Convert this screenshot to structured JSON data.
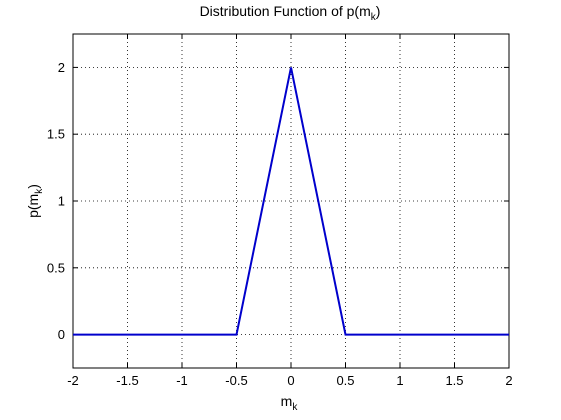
{
  "chart_data": {
    "type": "line",
    "title": {
      "main": "Distribution Function of p(m",
      "sub": "k",
      "close": ")"
    },
    "xlabel": {
      "main": "m",
      "sub": "k"
    },
    "ylabel": {
      "main": "p(m",
      "sub": "k",
      "close": ")"
    },
    "xlim": [
      -2,
      2
    ],
    "ylim": [
      -0.25,
      2.25
    ],
    "xticks": [
      -2,
      -1.5,
      -1,
      -0.5,
      0,
      0.5,
      1,
      1.5,
      2
    ],
    "xtick_labels": [
      "-2",
      "-1.5",
      "-1",
      "-0.5",
      "0",
      "0.5",
      "1",
      "1.5",
      "2"
    ],
    "yticks": [
      0,
      0.5,
      1,
      1.5,
      2
    ],
    "ytick_labels": [
      "0",
      "0.5",
      "1",
      "1.5",
      "2"
    ],
    "grid": true,
    "series": [
      {
        "color": "#0000cc",
        "x": [
          -2,
          -0.5,
          0,
          0.5,
          2
        ],
        "y": [
          0,
          0,
          2,
          0,
          0
        ]
      }
    ]
  }
}
